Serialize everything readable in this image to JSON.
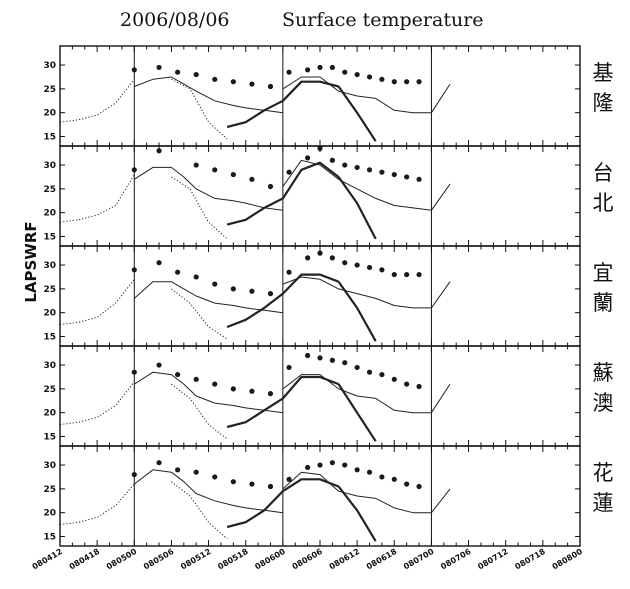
{
  "title": {
    "date": "2006/08/06",
    "name": "Surface temperature"
  },
  "colors": {
    "ink": "#111111",
    "obs": "#1a1a1a",
    "model": "#222222"
  },
  "chart_data": {
    "type": "line",
    "ylabel": "LAPSWRF",
    "ylim": [
      13,
      34
    ],
    "yticks": [
      15,
      20,
      25,
      30
    ],
    "xticks": [
      "080412",
      "080418",
      "080500",
      "080506",
      "080512",
      "080518",
      "080600",
      "080606",
      "080612",
      "080618",
      "080700",
      "080706",
      "080712",
      "080718",
      "080800"
    ],
    "xlim": [
      0,
      84
    ],
    "grid": false,
    "vlines_hours": [
      12,
      36,
      60
    ],
    "panels": [
      {
        "station": [
          "基",
          "隆"
        ],
        "series": [
          {
            "style": "dotted",
            "x": [
              0,
              3,
              6,
              9,
              12
            ],
            "y": [
              18,
              18.5,
              19.5,
              22,
              27
            ]
          },
          {
            "style": "thin",
            "x": [
              12,
              15,
              18,
              20,
              22,
              25,
              28,
              30,
              33,
              36
            ],
            "y": [
              25.5,
              27,
              27.5,
              26,
              24.5,
              22.5,
              21.5,
              21,
              20.5,
              20
            ]
          },
          {
            "style": "dotted",
            "x": [
              18,
              21,
              24,
              27
            ],
            "y": [
              27,
              25,
              18,
              14.5
            ]
          },
          {
            "style": "thick",
            "x": [
              27,
              30,
              33,
              36,
              39,
              42,
              45
            ],
            "y": [
              17,
              18,
              20.5,
              22.5,
              26.5,
              26.5,
              25.5
            ]
          },
          {
            "style": "thick",
            "x": [
              45,
              48,
              51
            ],
            "y": [
              25.5,
              20,
              14
            ]
          },
          {
            "style": "thin",
            "x": [
              36,
              39,
              42,
              45,
              48,
              51,
              54,
              57,
              60,
              63
            ],
            "y": [
              25,
              27.5,
              27.5,
              24.5,
              23.5,
              23,
              20.5,
              20,
              20,
              26
            ]
          },
          {
            "style": "dots",
            "x": [
              12,
              16,
              19,
              22,
              25,
              28,
              31,
              34,
              37,
              40,
              42,
              44,
              46,
              48,
              50,
              52,
              54,
              56,
              58
            ],
            "y": [
              29,
              29.5,
              28.5,
              28,
              27,
              26.5,
              26,
              25.5,
              28.5,
              29,
              29.5,
              29.5,
              28.5,
              28,
              27.5,
              27,
              26.5,
              26.5,
              26.5
            ]
          }
        ]
      },
      {
        "station": [
          "台",
          "北"
        ],
        "series": [
          {
            "style": "dotted",
            "x": [
              0,
              3,
              6,
              9,
              12
            ],
            "y": [
              18,
              18.5,
              19.5,
              21.5,
              28
            ]
          },
          {
            "style": "thin",
            "x": [
              12,
              15,
              18,
              20,
              22,
              25,
              28,
              30,
              33,
              36
            ],
            "y": [
              27,
              29.5,
              29.5,
              27.5,
              25,
              23,
              22.5,
              22,
              21,
              20.5
            ]
          },
          {
            "style": "dotted",
            "x": [
              18,
              21,
              24,
              27
            ],
            "y": [
              27.5,
              25,
              18,
              14.5
            ]
          },
          {
            "style": "thick",
            "x": [
              27,
              30,
              33,
              36,
              39,
              42,
              45
            ],
            "y": [
              17.5,
              18.5,
              21,
              23,
              29,
              30.5,
              27.5
            ]
          },
          {
            "style": "thick",
            "x": [
              45,
              48,
              51
            ],
            "y": [
              27.5,
              22,
              14.5
            ]
          },
          {
            "style": "thin",
            "x": [
              36,
              39,
              42,
              45,
              48,
              51,
              54,
              57,
              60,
              63
            ],
            "y": [
              25.5,
              31,
              30,
              27,
              25,
              23,
              21.5,
              21,
              20.5,
              26
            ]
          },
          {
            "style": "dots",
            "x": [
              12,
              16,
              22,
              25,
              28,
              31,
              34,
              37,
              40,
              42,
              44,
              46,
              48,
              50,
              52,
              54,
              56,
              58
            ],
            "y": [
              29,
              33,
              30,
              29,
              28,
              27,
              25.5,
              28.5,
              31.5,
              33.5,
              31,
              30,
              29.5,
              29,
              28.5,
              28,
              27.5,
              27
            ]
          }
        ]
      },
      {
        "station": [
          "宜",
          "蘭"
        ],
        "series": [
          {
            "style": "dotted",
            "x": [
              0,
              3,
              6,
              9,
              12
            ],
            "y": [
              17.5,
              18,
              19,
              22,
              27
            ]
          },
          {
            "style": "thin",
            "x": [
              12,
              15,
              18,
              20,
              22,
              25,
              28,
              30,
              33,
              36
            ],
            "y": [
              23,
              26.5,
              26.5,
              25,
              23.5,
              22,
              21.5,
              21,
              20.5,
              20
            ]
          },
          {
            "style": "dotted",
            "x": [
              18,
              21,
              24,
              27
            ],
            "y": [
              25,
              22,
              17,
              14.5
            ]
          },
          {
            "style": "thick",
            "x": [
              27,
              30,
              33,
              36,
              39,
              42,
              45
            ],
            "y": [
              17,
              18.5,
              21,
              24,
              28,
              28,
              26.5
            ]
          },
          {
            "style": "thick",
            "x": [
              45,
              48,
              51
            ],
            "y": [
              26.5,
              21,
              14
            ]
          },
          {
            "style": "thin",
            "x": [
              36,
              39,
              42,
              45,
              48,
              51,
              54,
              57,
              60,
              63
            ],
            "y": [
              26,
              27.5,
              27,
              25,
              24,
              23,
              21.5,
              21,
              21,
              26.5
            ]
          },
          {
            "style": "dots",
            "x": [
              12,
              16,
              19,
              22,
              25,
              28,
              31,
              34,
              37,
              40,
              42,
              44,
              46,
              48,
              50,
              52,
              54,
              56,
              58
            ],
            "y": [
              29,
              30.5,
              28.5,
              27.5,
              26,
              25,
              24.5,
              24,
              28.5,
              31.5,
              32.5,
              31.5,
              30.5,
              30,
              29.5,
              29,
              28,
              28,
              28
            ]
          }
        ]
      },
      {
        "station": [
          "蘇",
          "澳"
        ],
        "series": [
          {
            "style": "dotted",
            "x": [
              0,
              3,
              6,
              9,
              12
            ],
            "y": [
              17.5,
              18,
              19,
              21.5,
              26.5
            ]
          },
          {
            "style": "thin",
            "x": [
              12,
              15,
              18,
              20,
              22,
              25,
              28,
              30,
              33,
              36
            ],
            "y": [
              26,
              28.5,
              28,
              26,
              23.5,
              22,
              21.5,
              21,
              20.5,
              20
            ]
          },
          {
            "style": "dotted",
            "x": [
              18,
              21,
              24,
              27
            ],
            "y": [
              26,
              23,
              17.5,
              14.5
            ]
          },
          {
            "style": "thick",
            "x": [
              27,
              30,
              33,
              36,
              39,
              42,
              45
            ],
            "y": [
              17,
              18,
              20.5,
              23,
              27.5,
              27.5,
              26
            ]
          },
          {
            "style": "thick",
            "x": [
              45,
              48,
              51
            ],
            "y": [
              26,
              20,
              14
            ]
          },
          {
            "style": "thin",
            "x": [
              36,
              39,
              42,
              45,
              48,
              51,
              54,
              57,
              60,
              63
            ],
            "y": [
              25,
              28,
              28,
              25,
              23.5,
              23,
              20.5,
              20,
              20,
              26
            ]
          },
          {
            "style": "dots",
            "x": [
              12,
              16,
              19,
              22,
              25,
              28,
              31,
              34,
              37,
              40,
              42,
              44,
              46,
              48,
              50,
              52,
              54,
              56,
              58
            ],
            "y": [
              28.5,
              30,
              28,
              27,
              26,
              25,
              24.5,
              24,
              29.5,
              32,
              31.5,
              31,
              30.5,
              29.5,
              28.5,
              28,
              27,
              26,
              25.5
            ]
          }
        ]
      },
      {
        "station": [
          "花",
          "蓮"
        ],
        "series": [
          {
            "style": "dotted",
            "x": [
              0,
              3,
              6,
              9,
              12
            ],
            "y": [
              17.5,
              18,
              19,
              21.5,
              26
            ]
          },
          {
            "style": "thin",
            "x": [
              12,
              15,
              18,
              20,
              22,
              25,
              28,
              30,
              33,
              36
            ],
            "y": [
              26,
              29,
              28.5,
              26.5,
              24,
              22.5,
              21.5,
              21,
              20.5,
              20
            ]
          },
          {
            "style": "dotted",
            "x": [
              18,
              21,
              24,
              27
            ],
            "y": [
              26.5,
              23.5,
              18,
              14.5
            ]
          },
          {
            "style": "thick",
            "x": [
              27,
              30,
              33,
              36,
              39,
              42,
              45
            ],
            "y": [
              17,
              18,
              20.5,
              24.5,
              27,
              27,
              25.5
            ]
          },
          {
            "style": "thick",
            "x": [
              45,
              48,
              51
            ],
            "y": [
              25.5,
              20.5,
              14
            ]
          },
          {
            "style": "thin",
            "x": [
              36,
              39,
              42,
              45,
              48,
              51,
              54,
              57,
              60,
              63
            ],
            "y": [
              25,
              28.5,
              28,
              24.5,
              23.5,
              23,
              21,
              20,
              20,
              25
            ]
          },
          {
            "style": "dots",
            "x": [
              12,
              16,
              19,
              22,
              25,
              28,
              31,
              34,
              37,
              40,
              42,
              44,
              46,
              48,
              50,
              52,
              54,
              56,
              58
            ],
            "y": [
              28,
              30.5,
              29,
              28.5,
              27.5,
              26.5,
              26,
              25.5,
              27,
              29.5,
              30,
              30.5,
              30,
              29,
              28.5,
              27.5,
              27,
              26,
              25.5
            ]
          }
        ]
      }
    ]
  }
}
